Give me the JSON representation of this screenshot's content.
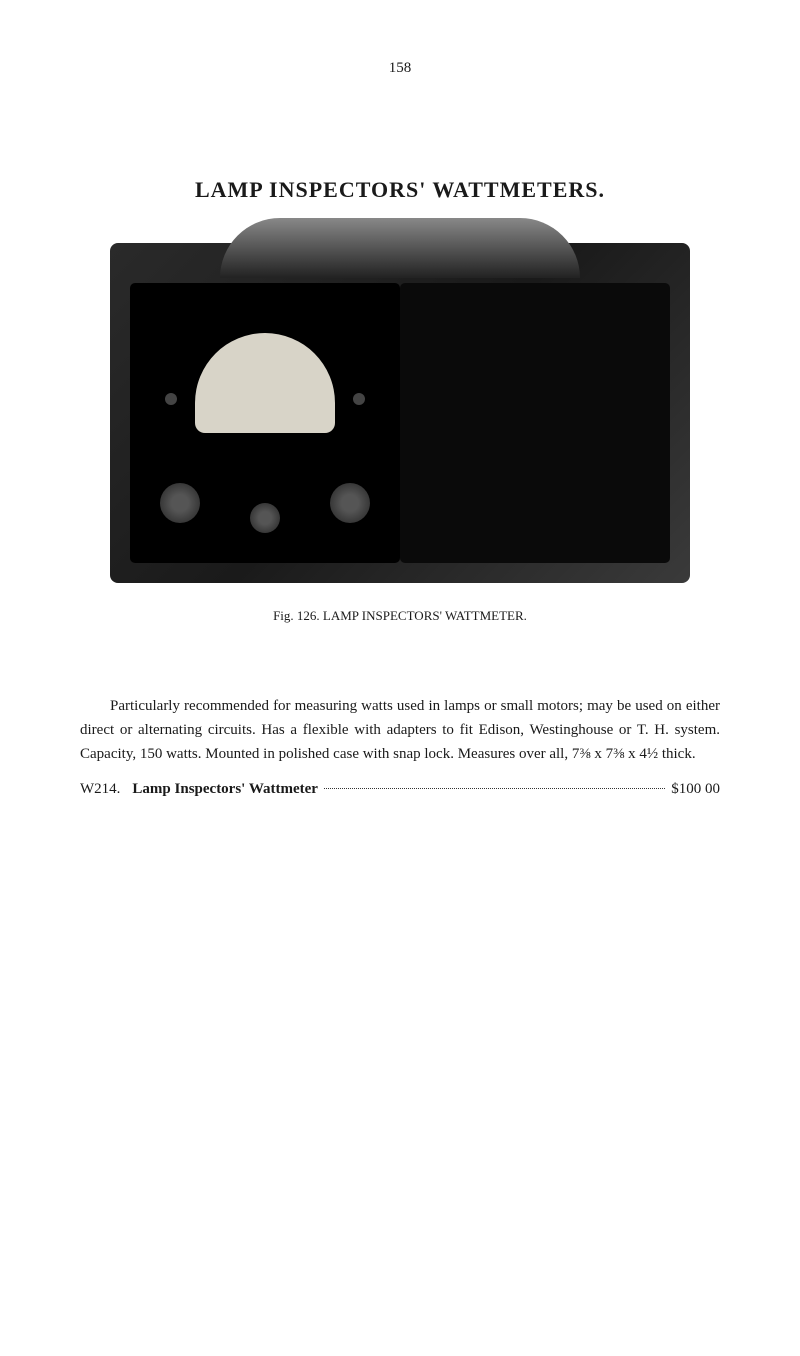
{
  "page_number": "158",
  "title": "LAMP INSPECTORS' WATTMETERS.",
  "figure_caption": "Fig. 126.  LAMP INSPECTORS' WATTMETER.",
  "paragraph": "Particularly recommended for measuring watts used in lamps or small motors; may be used on either direct or alternating circuits.  Has a flexible with adapters to fit Edison, Westinghouse or T. H. system.  Capacity, 150 watts.  Mounted in polished case with snap lock.  Measures over all, 7⅜ x 7⅜ x 4½ thick.",
  "price_line": {
    "code": "W214.",
    "name": "Lamp Inspectors' Wattmeter",
    "value": "$100 00"
  },
  "colors": {
    "background": "#ffffff",
    "text": "#1a1a1a"
  }
}
